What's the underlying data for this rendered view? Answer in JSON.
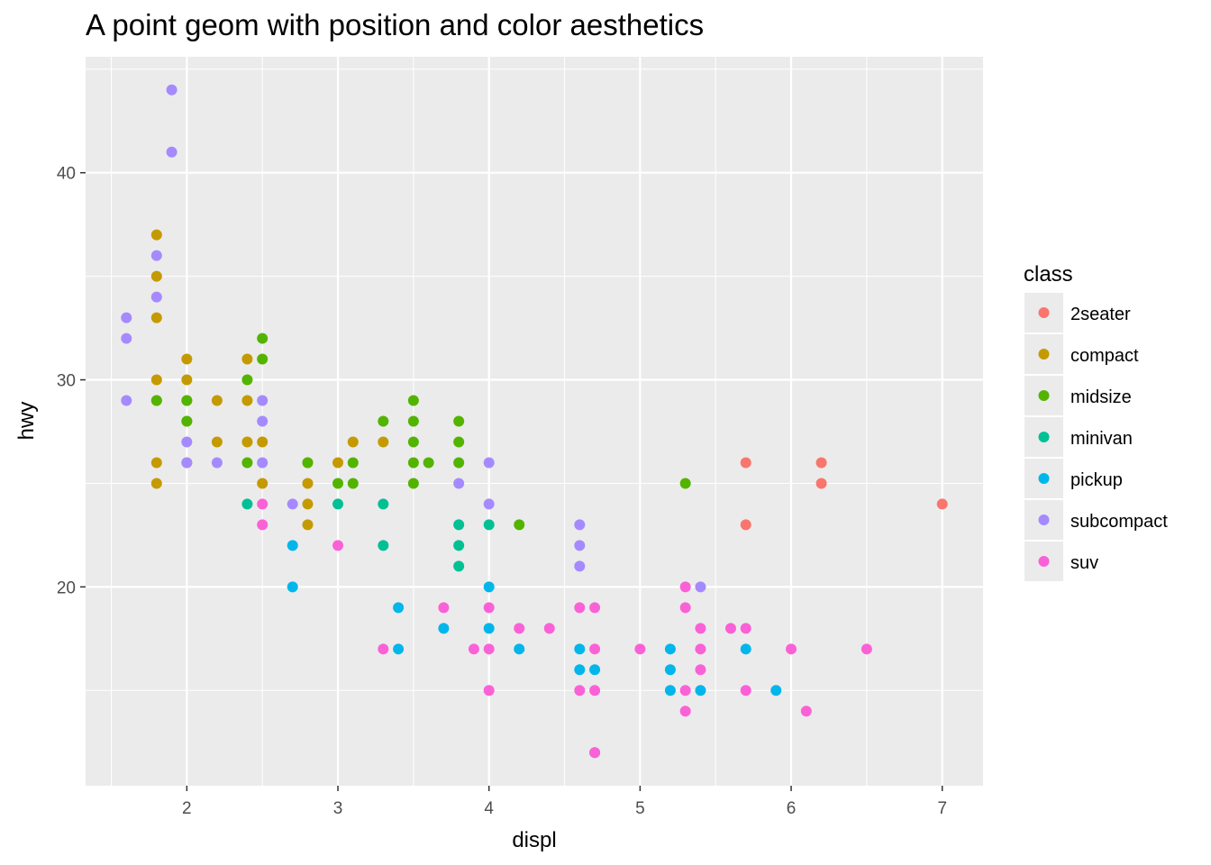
{
  "chart_data": {
    "type": "scatter",
    "title": "A point geom with position and color aesthetics",
    "xlabel": "displ",
    "ylabel": "hwy",
    "xlim": [
      1.33,
      7.27
    ],
    "ylim": [
      10.4,
      45.6
    ],
    "x_ticks": [
      2,
      3,
      4,
      5,
      6,
      7
    ],
    "x_tick_labels": [
      "2",
      "3",
      "4",
      "5",
      "6",
      "7"
    ],
    "y_ticks": [
      20,
      30,
      40
    ],
    "y_tick_labels": [
      "20",
      "30",
      "40"
    ],
    "grid": true,
    "legend": {
      "title": "class",
      "placement": "right",
      "entries": [
        "2seater",
        "compact",
        "midsize",
        "minivan",
        "pickup",
        "subcompact",
        "suv"
      ]
    },
    "colors": {
      "2seater": "#F8766D",
      "compact": "#C49A00",
      "midsize": "#53B400",
      "minivan": "#00C094",
      "pickup": "#00B6EB",
      "subcompact": "#A58AFF",
      "suv": "#FB61D7"
    },
    "points": [
      {
        "class": "2seater",
        "x": 5.7,
        "y": 26
      },
      {
        "class": "2seater",
        "x": 5.7,
        "y": 23
      },
      {
        "class": "2seater",
        "x": 6.2,
        "y": 26
      },
      {
        "class": "2seater",
        "x": 6.2,
        "y": 25
      },
      {
        "class": "2seater",
        "x": 7.0,
        "y": 24
      },
      {
        "class": "compact",
        "x": 1.8,
        "y": 37
      },
      {
        "class": "compact",
        "x": 1.8,
        "y": 35
      },
      {
        "class": "compact",
        "x": 1.8,
        "y": 33
      },
      {
        "class": "compact",
        "x": 1.8,
        "y": 30
      },
      {
        "class": "compact",
        "x": 1.8,
        "y": 29
      },
      {
        "class": "compact",
        "x": 1.8,
        "y": 26
      },
      {
        "class": "compact",
        "x": 1.8,
        "y": 25
      },
      {
        "class": "compact",
        "x": 2.0,
        "y": 31
      },
      {
        "class": "compact",
        "x": 2.0,
        "y": 30
      },
      {
        "class": "compact",
        "x": 2.0,
        "y": 29
      },
      {
        "class": "compact",
        "x": 2.0,
        "y": 28
      },
      {
        "class": "compact",
        "x": 2.0,
        "y": 26
      },
      {
        "class": "compact",
        "x": 2.2,
        "y": 29
      },
      {
        "class": "compact",
        "x": 2.2,
        "y": 27
      },
      {
        "class": "compact",
        "x": 2.4,
        "y": 31
      },
      {
        "class": "compact",
        "x": 2.4,
        "y": 29
      },
      {
        "class": "compact",
        "x": 2.4,
        "y": 27
      },
      {
        "class": "compact",
        "x": 2.5,
        "y": 27
      },
      {
        "class": "compact",
        "x": 2.5,
        "y": 25
      },
      {
        "class": "compact",
        "x": 2.8,
        "y": 26
      },
      {
        "class": "compact",
        "x": 2.8,
        "y": 25
      },
      {
        "class": "compact",
        "x": 2.8,
        "y": 24
      },
      {
        "class": "compact",
        "x": 2.8,
        "y": 23
      },
      {
        "class": "compact",
        "x": 3.0,
        "y": 26
      },
      {
        "class": "compact",
        "x": 3.1,
        "y": 27
      },
      {
        "class": "compact",
        "x": 3.3,
        "y": 27
      },
      {
        "class": "midsize",
        "x": 1.8,
        "y": 29
      },
      {
        "class": "midsize",
        "x": 2.0,
        "y": 29
      },
      {
        "class": "midsize",
        "x": 2.0,
        "y": 28
      },
      {
        "class": "midsize",
        "x": 2.4,
        "y": 30
      },
      {
        "class": "midsize",
        "x": 2.4,
        "y": 26
      },
      {
        "class": "midsize",
        "x": 2.5,
        "y": 32
      },
      {
        "class": "midsize",
        "x": 2.5,
        "y": 31
      },
      {
        "class": "midsize",
        "x": 2.8,
        "y": 26
      },
      {
        "class": "midsize",
        "x": 3.0,
        "y": 25
      },
      {
        "class": "midsize",
        "x": 3.1,
        "y": 26
      },
      {
        "class": "midsize",
        "x": 3.1,
        "y": 25
      },
      {
        "class": "midsize",
        "x": 3.3,
        "y": 28
      },
      {
        "class": "midsize",
        "x": 3.5,
        "y": 29
      },
      {
        "class": "midsize",
        "x": 3.5,
        "y": 28
      },
      {
        "class": "midsize",
        "x": 3.5,
        "y": 27
      },
      {
        "class": "midsize",
        "x": 3.5,
        "y": 26
      },
      {
        "class": "midsize",
        "x": 3.5,
        "y": 25
      },
      {
        "class": "midsize",
        "x": 3.6,
        "y": 26
      },
      {
        "class": "midsize",
        "x": 3.8,
        "y": 28
      },
      {
        "class": "midsize",
        "x": 3.8,
        "y": 27
      },
      {
        "class": "midsize",
        "x": 3.8,
        "y": 26
      },
      {
        "class": "midsize",
        "x": 4.2,
        "y": 23
      },
      {
        "class": "midsize",
        "x": 5.3,
        "y": 25
      },
      {
        "class": "minivan",
        "x": 2.4,
        "y": 24
      },
      {
        "class": "minivan",
        "x": 3.0,
        "y": 24
      },
      {
        "class": "minivan",
        "x": 3.3,
        "y": 24
      },
      {
        "class": "minivan",
        "x": 3.3,
        "y": 22
      },
      {
        "class": "minivan",
        "x": 3.8,
        "y": 23
      },
      {
        "class": "minivan",
        "x": 3.8,
        "y": 22
      },
      {
        "class": "minivan",
        "x": 3.8,
        "y": 21
      },
      {
        "class": "minivan",
        "x": 4.0,
        "y": 23
      },
      {
        "class": "pickup",
        "x": 2.7,
        "y": 22
      },
      {
        "class": "pickup",
        "x": 2.7,
        "y": 20
      },
      {
        "class": "pickup",
        "x": 3.4,
        "y": 19
      },
      {
        "class": "pickup",
        "x": 3.4,
        "y": 17
      },
      {
        "class": "pickup",
        "x": 3.7,
        "y": 18
      },
      {
        "class": "pickup",
        "x": 4.0,
        "y": 20
      },
      {
        "class": "pickup",
        "x": 4.0,
        "y": 18
      },
      {
        "class": "pickup",
        "x": 4.2,
        "y": 17
      },
      {
        "class": "pickup",
        "x": 4.6,
        "y": 17
      },
      {
        "class": "pickup",
        "x": 4.6,
        "y": 16
      },
      {
        "class": "pickup",
        "x": 4.7,
        "y": 16
      },
      {
        "class": "pickup",
        "x": 5.2,
        "y": 17
      },
      {
        "class": "pickup",
        "x": 5.2,
        "y": 16
      },
      {
        "class": "pickup",
        "x": 5.2,
        "y": 15
      },
      {
        "class": "pickup",
        "x": 5.4,
        "y": 15
      },
      {
        "class": "pickup",
        "x": 5.7,
        "y": 17
      },
      {
        "class": "pickup",
        "x": 5.9,
        "y": 15
      },
      {
        "class": "pickup",
        "x": 4.7,
        "y": 12
      },
      {
        "class": "subcompact",
        "x": 1.6,
        "y": 33
      },
      {
        "class": "subcompact",
        "x": 1.6,
        "y": 32
      },
      {
        "class": "subcompact",
        "x": 1.6,
        "y": 29
      },
      {
        "class": "subcompact",
        "x": 1.8,
        "y": 36
      },
      {
        "class": "subcompact",
        "x": 1.8,
        "y": 34
      },
      {
        "class": "subcompact",
        "x": 1.9,
        "y": 44
      },
      {
        "class": "subcompact",
        "x": 1.9,
        "y": 41
      },
      {
        "class": "subcompact",
        "x": 2.0,
        "y": 27
      },
      {
        "class": "subcompact",
        "x": 2.0,
        "y": 26
      },
      {
        "class": "subcompact",
        "x": 2.2,
        "y": 26
      },
      {
        "class": "subcompact",
        "x": 2.5,
        "y": 29
      },
      {
        "class": "subcompact",
        "x": 2.5,
        "y": 28
      },
      {
        "class": "subcompact",
        "x": 2.5,
        "y": 26
      },
      {
        "class": "subcompact",
        "x": 2.7,
        "y": 24
      },
      {
        "class": "subcompact",
        "x": 3.8,
        "y": 25
      },
      {
        "class": "subcompact",
        "x": 4.0,
        "y": 26
      },
      {
        "class": "subcompact",
        "x": 4.0,
        "y": 24
      },
      {
        "class": "subcompact",
        "x": 4.6,
        "y": 23
      },
      {
        "class": "subcompact",
        "x": 4.6,
        "y": 22
      },
      {
        "class": "subcompact",
        "x": 4.6,
        "y": 21
      },
      {
        "class": "subcompact",
        "x": 5.4,
        "y": 20
      },
      {
        "class": "suv",
        "x": 2.5,
        "y": 24
      },
      {
        "class": "suv",
        "x": 2.5,
        "y": 23
      },
      {
        "class": "suv",
        "x": 3.0,
        "y": 22
      },
      {
        "class": "suv",
        "x": 3.3,
        "y": 17
      },
      {
        "class": "suv",
        "x": 3.7,
        "y": 19
      },
      {
        "class": "suv",
        "x": 3.9,
        "y": 17
      },
      {
        "class": "suv",
        "x": 4.0,
        "y": 19
      },
      {
        "class": "suv",
        "x": 4.0,
        "y": 17
      },
      {
        "class": "suv",
        "x": 4.0,
        "y": 15
      },
      {
        "class": "suv",
        "x": 4.2,
        "y": 18
      },
      {
        "class": "suv",
        "x": 4.4,
        "y": 18
      },
      {
        "class": "suv",
        "x": 4.6,
        "y": 19
      },
      {
        "class": "suv",
        "x": 4.6,
        "y": 15
      },
      {
        "class": "suv",
        "x": 4.7,
        "y": 19
      },
      {
        "class": "suv",
        "x": 4.7,
        "y": 17
      },
      {
        "class": "suv",
        "x": 4.7,
        "y": 15
      },
      {
        "class": "suv",
        "x": 5.0,
        "y": 17
      },
      {
        "class": "suv",
        "x": 5.3,
        "y": 20
      },
      {
        "class": "suv",
        "x": 5.3,
        "y": 19
      },
      {
        "class": "suv",
        "x": 5.3,
        "y": 15
      },
      {
        "class": "suv",
        "x": 5.3,
        "y": 14
      },
      {
        "class": "suv",
        "x": 5.4,
        "y": 18
      },
      {
        "class": "suv",
        "x": 5.4,
        "y": 17
      },
      {
        "class": "suv",
        "x": 5.4,
        "y": 16
      },
      {
        "class": "suv",
        "x": 5.6,
        "y": 18
      },
      {
        "class": "suv",
        "x": 5.7,
        "y": 18
      },
      {
        "class": "suv",
        "x": 5.7,
        "y": 15
      },
      {
        "class": "suv",
        "x": 6.0,
        "y": 17
      },
      {
        "class": "suv",
        "x": 6.1,
        "y": 14
      },
      {
        "class": "suv",
        "x": 6.5,
        "y": 17
      },
      {
        "class": "suv",
        "x": 4.7,
        "y": 12
      }
    ]
  }
}
